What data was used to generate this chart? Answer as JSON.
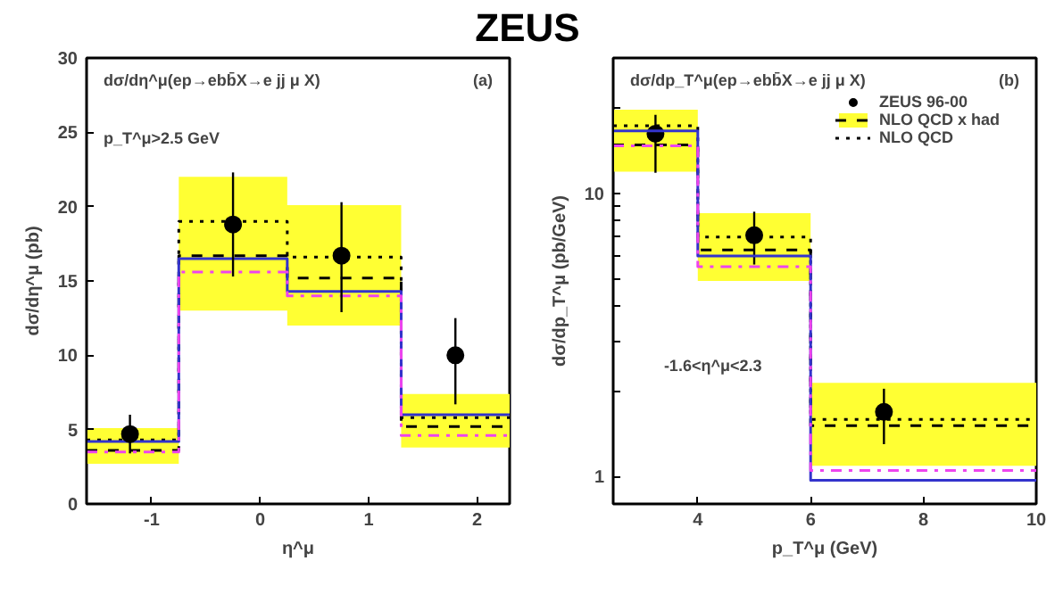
{
  "chart_data": [
    {
      "type": "step",
      "title": "ZEUS",
      "xlabel": "η^μ",
      "ylabel": "dσ/dη^μ (pb)",
      "annotations": [
        "dσ/dη^μ(ep→ebb̄X→e jj μ X)",
        "(a)",
        "p_T^μ>2.5 GeV"
      ],
      "xlim": [
        -1.6,
        2.3
      ],
      "xticks": [
        -1,
        0,
        1,
        2
      ],
      "ylim": [
        0,
        30
      ],
      "yticks": [
        0,
        5,
        10,
        15,
        20,
        25,
        30
      ],
      "grid": false,
      "legend": false,
      "series": [
        {
          "color": "#000000",
          "line_style": "dashed",
          "x": [
            -1.6,
            -0.75,
            0.25,
            1.3,
            2.3
          ],
          "values": [
            3.6,
            16.7,
            15.2,
            5.2,
            5.2
          ],
          "lower": [
            2.7,
            13.0,
            12.0,
            3.8,
            3.8
          ],
          "upper": [
            5.1,
            22.0,
            20.1,
            7.4,
            7.4
          ]
        },
        {
          "color": "#000000",
          "line_style": "dotted",
          "x": [
            -1.6,
            -0.75,
            0.25,
            1.3,
            2.3
          ],
          "values": [
            4.3,
            19.0,
            16.6,
            5.8,
            5.8
          ]
        },
        {
          "color": "#3333cc",
          "line_style": "solid",
          "x": [
            -1.6,
            -0.75,
            0.25,
            1.3,
            2.3
          ],
          "values": [
            4.2,
            16.5,
            14.3,
            6.0,
            6.0
          ]
        },
        {
          "color": "#ee44ee",
          "line_style": "dashdot",
          "x": [
            -1.6,
            -0.75,
            0.25,
            1.3,
            2.3
          ],
          "values": [
            3.5,
            15.6,
            14.0,
            4.6,
            4.6
          ]
        },
        {
          "type": "scatter",
          "color": "#000000",
          "marker": "circle",
          "x": [
            -1.2,
            -0.25,
            0.75,
            1.8
          ],
          "values": [
            4.7,
            18.8,
            16.7,
            10.0
          ],
          "errors": [
            [
              3.4,
              6.0
            ],
            [
              15.3,
              22.3
            ],
            [
              12.9,
              20.3
            ],
            [
              6.7,
              12.5
            ]
          ]
        }
      ]
    },
    {
      "type": "step",
      "xlabel": "p_T^μ (GeV)",
      "ylabel": "dσ/dp_T^μ (pb/GeV)",
      "log": true,
      "annotations": [
        "dσ/dp_T^μ(ep→ebb̄X→e jj μ X)",
        "(b)",
        "-1.6<η^μ<2.3"
      ],
      "xlim": [
        2.5,
        10
      ],
      "xticks": [
        4,
        6,
        8,
        10
      ],
      "ylim": [
        0.8,
        30
      ],
      "yticks": [
        1,
        {
          "value": 2,
          "label": null
        },
        {
          "value": 3,
          "label": null
        },
        {
          "value": 4,
          "label": null
        },
        {
          "value": 5,
          "label": null
        },
        {
          "value": 6,
          "label": null
        },
        {
          "value": 7,
          "label": null
        },
        {
          "value": 8,
          "label": null
        },
        {
          "value": 9,
          "label": null
        },
        10,
        {
          "value": 20,
          "label": null
        }
      ],
      "grid": false,
      "legend": "top right",
      "series": [
        {
          "type": "scatter",
          "name": "ZEUS 96-00",
          "color": "#000000",
          "marker": "circle",
          "x": [
            3.25,
            5.0,
            7.3
          ],
          "values": [
            16.2,
            7.1,
            1.69
          ],
          "errors": [
            [
              11.8,
              18.9
            ],
            [
              5.6,
              8.6
            ],
            [
              1.3,
              2.04
            ]
          ]
        },
        {
          "name": "NLO QCD x had",
          "color": "#000000",
          "line_style": "dashed",
          "x": [
            2.5,
            4,
            6,
            10
          ],
          "values": [
            14.8,
            6.3,
            1.51,
            1.51
          ],
          "lower": [
            11.9,
            4.9,
            1.09,
            1.09
          ],
          "upper": [
            19.7,
            8.5,
            2.14,
            2.14
          ]
        },
        {
          "name": "NLO QCD",
          "color": "#000000",
          "line_style": "dotted",
          "x": [
            2.5,
            4,
            6,
            10
          ],
          "values": [
            17.3,
            7.0,
            1.59,
            1.59
          ]
        },
        {
          "color": "#3333cc",
          "line_style": "solid",
          "x": [
            2.5,
            4,
            6,
            10
          ],
          "values": [
            16.6,
            6.0,
            0.97,
            0.97
          ]
        },
        {
          "color": "#ee44ee",
          "line_style": "dashdot",
          "x": [
            2.5,
            4,
            6,
            10
          ],
          "values": [
            14.7,
            5.5,
            1.05,
            1.05
          ]
        }
      ]
    }
  ]
}
